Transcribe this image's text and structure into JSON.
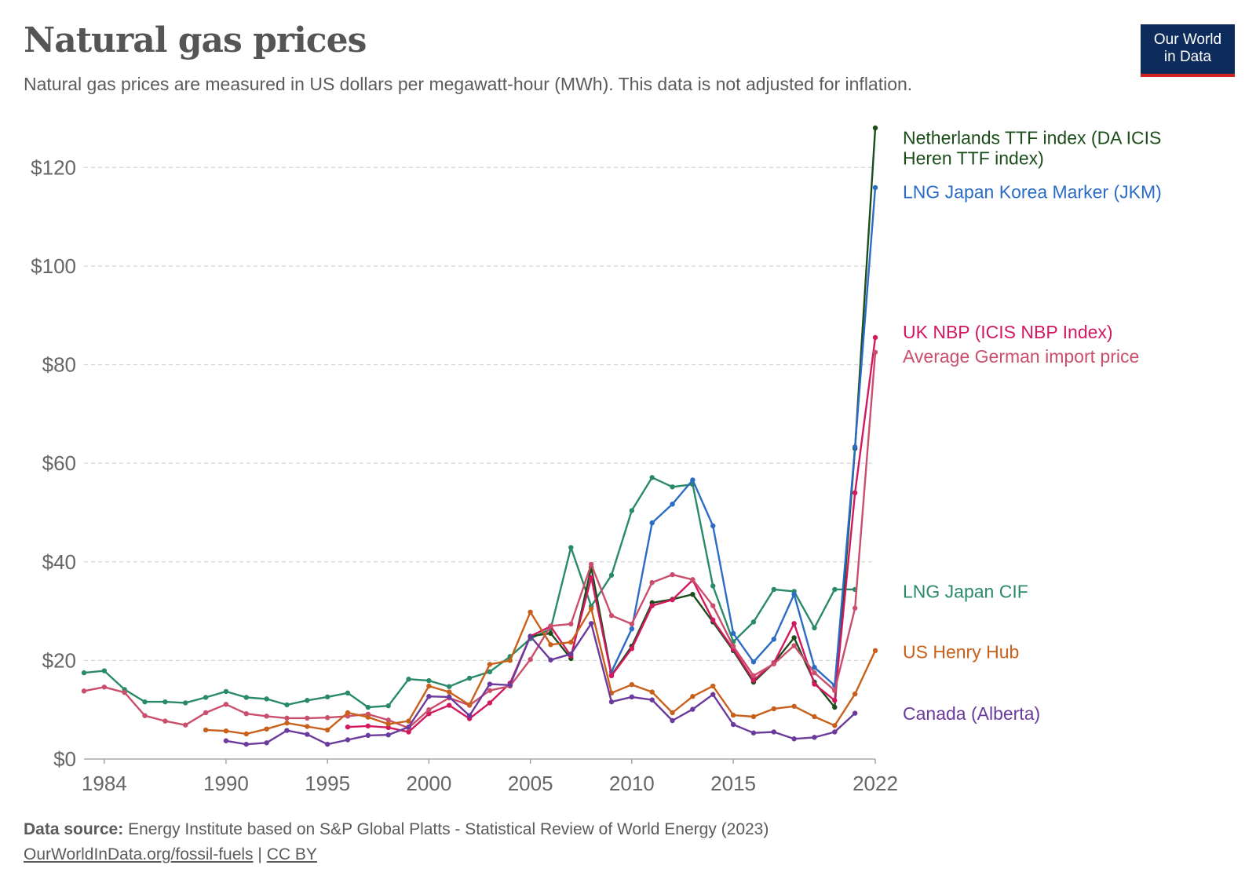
{
  "header": {
    "title": "Natural gas prices",
    "subtitle": "Natural gas prices are measured in US dollars per megawatt-hour (MWh). This data is not adjusted for inflation."
  },
  "logo": {
    "line1": "Our World",
    "line2": "in Data",
    "bg_color": "#0d2c5c",
    "accent_color": "#ce261e"
  },
  "footer": {
    "source_label": "Data source:",
    "source_text": "Energy Institute based on S&P Global Platts - Statistical Review of World Energy (2023)",
    "link_text": "OurWorldInData.org/fossil-fuels",
    "separator": "|",
    "license_text": "CC BY"
  },
  "chart_data": {
    "type": "line",
    "xlim": [
      1983,
      2022
    ],
    "ylim": [
      0,
      128
    ],
    "grid": "horizontal dashed",
    "legend": "labels at line ends (right)",
    "x_ticks": [
      {
        "value": 1984,
        "label": "1984"
      },
      {
        "value": 1990,
        "label": "1990"
      },
      {
        "value": 1995,
        "label": "1995"
      },
      {
        "value": 2000,
        "label": "2000"
      },
      {
        "value": 2005,
        "label": "2005"
      },
      {
        "value": 2010,
        "label": "2010"
      },
      {
        "value": 2015,
        "label": "2015"
      },
      {
        "value": 2022,
        "label": "2022"
      }
    ],
    "y_ticks": [
      {
        "value": 0,
        "label": "$0"
      },
      {
        "value": 20,
        "label": "$20"
      },
      {
        "value": 40,
        "label": "$40"
      },
      {
        "value": 60,
        "label": "$60"
      },
      {
        "value": 80,
        "label": "$80"
      },
      {
        "value": 100,
        "label": "$100"
      },
      {
        "value": 120,
        "label": "$120"
      }
    ],
    "series": [
      {
        "name": "LNG Japan CIF",
        "label_lines": [
          "LNG Japan CIF"
        ],
        "color": "#2a8a68",
        "label_y": 34,
        "x": [
          1983,
          1984,
          1985,
          1986,
          1987,
          1988,
          1989,
          1990,
          1991,
          1992,
          1993,
          1994,
          1995,
          1996,
          1997,
          1998,
          1999,
          2000,
          2001,
          2002,
          2003,
          2004,
          2005,
          2006,
          2007,
          2008,
          2009,
          2010,
          2011,
          2012,
          2013,
          2014,
          2015,
          2016,
          2017,
          2018,
          2019,
          2020,
          2021
        ],
        "y": [
          17.5,
          17.9,
          14.1,
          11.6,
          11.6,
          11.4,
          12.5,
          13.7,
          12.5,
          12.2,
          11.0,
          11.9,
          12.6,
          13.4,
          10.5,
          10.8,
          16.2,
          15.9,
          14.7,
          16.4,
          17.7,
          20.8,
          24.4,
          26.4,
          42.9,
          31.0,
          37.3,
          50.4,
          57.1,
          55.2,
          55.7,
          35.1,
          23.8,
          27.8,
          34.4,
          34.0,
          26.6,
          34.4,
          34.4
        ]
      },
      {
        "name": "Netherlands TTF index (DA ICIS Heren TTF index)",
        "label_lines": [
          "Netherlands TTF index (DA ICIS",
          "Heren TTF index)"
        ],
        "color": "#1d4d1b",
        "label_y": 126,
        "x": [
          2005,
          2006,
          2007,
          2008,
          2009,
          2010,
          2011,
          2012,
          2013,
          2014,
          2015,
          2016,
          2017,
          2018,
          2019,
          2020,
          2021,
          2022
        ],
        "y": [
          24.9,
          25.5,
          20.4,
          38.9,
          17.0,
          22.9,
          31.7,
          32.4,
          33.4,
          27.8,
          22.0,
          15.6,
          19.5,
          24.6,
          15.6,
          10.5,
          63.0,
          128.0
        ]
      },
      {
        "name": "LNG Japan Korea Marker (JKM)",
        "label_lines": [
          "LNG Japan Korea Marker (JKM)"
        ],
        "color": "#2b6cc4",
        "label_y": 115,
        "x": [
          2009,
          2010,
          2011,
          2012,
          2013,
          2014,
          2015,
          2016,
          2017,
          2018,
          2019,
          2020,
          2021,
          2022
        ],
        "y": [
          17.7,
          26.4,
          47.9,
          51.7,
          56.6,
          47.3,
          25.5,
          19.7,
          24.3,
          33.4,
          18.6,
          14.9,
          63.3,
          115.9
        ]
      },
      {
        "name": "UK NBP (ICIS NBP Index)",
        "label_lines": [
          "UK NBP (ICIS NBP Index)"
        ],
        "color": "#d2195f",
        "label_y": 86.6,
        "x": [
          1996,
          1997,
          1998,
          1999,
          2000,
          2001,
          2002,
          2003,
          2004,
          2005,
          2006,
          2007,
          2008,
          2009,
          2010,
          2011,
          2012,
          2013,
          2014,
          2015,
          2016,
          2017,
          2018,
          2019,
          2020,
          2021,
          2022
        ],
        "y": [
          6.5,
          6.7,
          6.4,
          5.5,
          9.2,
          10.9,
          8.2,
          11.4,
          15.4,
          24.9,
          26.9,
          20.9,
          36.8,
          16.9,
          22.4,
          31.1,
          32.3,
          36.3,
          28.2,
          22.3,
          16.0,
          19.5,
          27.5,
          15.2,
          11.9,
          54.0,
          85.5
        ]
      },
      {
        "name": "Average German import price",
        "label_lines": [
          "Average German import price"
        ],
        "color": "#c94f6d",
        "label_y": 81.7,
        "x": [
          1983,
          1984,
          1985,
          1986,
          1987,
          1988,
          1989,
          1990,
          1991,
          1992,
          1993,
          1994,
          1995,
          1996,
          1997,
          1998,
          1999,
          2000,
          2001,
          2002,
          2003,
          2004,
          2005,
          2006,
          2007,
          2008,
          2009,
          2010,
          2011,
          2012,
          2013,
          2014,
          2015,
          2016,
          2017,
          2018,
          2019,
          2020,
          2021,
          2022
        ],
        "y": [
          13.8,
          14.6,
          13.5,
          8.8,
          7.7,
          6.9,
          9.4,
          11.1,
          9.2,
          8.7,
          8.3,
          8.3,
          8.4,
          8.7,
          9.1,
          7.9,
          6.3,
          10.0,
          12.4,
          10.9,
          13.9,
          14.8,
          20.2,
          27.0,
          27.4,
          39.5,
          29.1,
          27.4,
          35.8,
          37.4,
          36.4,
          31.1,
          22.9,
          16.9,
          19.3,
          23.0,
          17.5,
          13.9,
          30.6,
          82.5
        ]
      },
      {
        "name": "US Henry Hub",
        "label_lines": [
          "US Henry Hub"
        ],
        "color": "#c8601b",
        "label_y": 21.7,
        "x": [
          1989,
          1990,
          1991,
          1992,
          1993,
          1994,
          1995,
          1996,
          1997,
          1998,
          1999,
          2000,
          2001,
          2002,
          2003,
          2004,
          2005,
          2006,
          2007,
          2008,
          2009,
          2010,
          2011,
          2012,
          2013,
          2014,
          2015,
          2016,
          2017,
          2018,
          2019,
          2020,
          2021,
          2022
        ],
        "y": [
          5.9,
          5.7,
          5.1,
          6.1,
          7.3,
          6.6,
          5.9,
          9.4,
          8.5,
          7.1,
          7.7,
          14.8,
          13.6,
          11.0,
          19.2,
          20.0,
          29.8,
          23.2,
          23.7,
          30.5,
          13.4,
          15.1,
          13.6,
          9.4,
          12.7,
          14.8,
          8.9,
          8.6,
          10.2,
          10.7,
          8.6,
          6.8,
          13.2,
          22.0
        ]
      },
      {
        "name": "Canada (Alberta)",
        "label_lines": [
          "Canada (Alberta)"
        ],
        "color": "#6b3a9d",
        "label_y": 9.2,
        "x": [
          1990,
          1991,
          1992,
          1993,
          1994,
          1995,
          1996,
          1997,
          1998,
          1999,
          2000,
          2001,
          2002,
          2003,
          2004,
          2005,
          2006,
          2007,
          2008,
          2009,
          2010,
          2011,
          2012,
          2013,
          2014,
          2015,
          2016,
          2017,
          2018,
          2019,
          2020,
          2021
        ],
        "y": [
          3.7,
          3.0,
          3.3,
          5.8,
          5.0,
          3.0,
          3.9,
          4.8,
          4.9,
          6.5,
          12.7,
          12.6,
          8.8,
          15.2,
          15.0,
          24.9,
          20.1,
          21.3,
          27.5,
          11.6,
          12.6,
          12.0,
          7.8,
          10.1,
          13.1,
          7.0,
          5.3,
          5.5,
          4.1,
          4.4,
          5.5,
          9.3
        ]
      }
    ]
  }
}
